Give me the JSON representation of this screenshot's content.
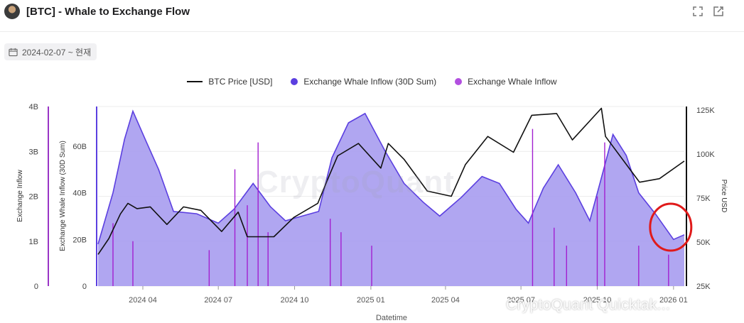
{
  "header": {
    "title": "[BTC] - Whale to Exchange Flow",
    "icons": [
      "expand-icon",
      "open-external-icon"
    ]
  },
  "date_filter": {
    "label": "2024-02-07 ~ 현재",
    "icon": "calendar-icon"
  },
  "watermark": {
    "logo_text": "CryptoQuant",
    "text": "CryptoQuant Quicktak..."
  },
  "colors": {
    "price": "#111111",
    "sum30d_line": "#5b3fe0",
    "sum30d_fill": "#a79cef",
    "daily_inflow": "#a21fd0",
    "axis_left": "#9a35c6",
    "axis_mid": "#5b3fe0",
    "annotation_circle": "#e01a1a"
  },
  "chart_data": {
    "type": "line",
    "xlabel": "Datetime",
    "x_ticks": [
      "2024 04",
      "2024 07",
      "2024 10",
      "2025 01",
      "2025 04",
      "2025 07",
      "2025 10",
      "2026 01"
    ],
    "x_range": [
      "2024-02-07",
      "2026-01-14"
    ],
    "legend": [
      "BTC Price [USD]",
      "Exchange Whale Inflow (30D Sum)",
      "Exchange Whale Inflow"
    ],
    "legend_placement": "top",
    "grid": true,
    "axes": [
      {
        "name": "Exchange Inflow",
        "side": "left-outer",
        "ticks": [
          "0",
          "1B",
          "2B",
          "3B",
          "4B"
        ],
        "range": [
          0,
          4000000000
        ]
      },
      {
        "name": "Exchange Whale Inflow (30D Sum)",
        "side": "left-inner",
        "ticks": [
          "0",
          "20B",
          "40B",
          "60B"
        ],
        "range": [
          0,
          77000000000
        ]
      },
      {
        "name": "Price USD",
        "side": "right",
        "ticks": [
          "25K",
          "50K",
          "75K",
          "100K",
          "125K"
        ],
        "range": [
          25000,
          127000
        ]
      }
    ],
    "series": [
      {
        "name": "BTC Price [USD]",
        "axis": "right",
        "points": [
          [
            "2024-02-07",
            43000
          ],
          [
            "2024-02-20",
            52000
          ],
          [
            "2024-03-05",
            66000
          ],
          [
            "2024-03-14",
            72000
          ],
          [
            "2024-03-25",
            69000
          ],
          [
            "2024-04-10",
            70000
          ],
          [
            "2024-04-30",
            60000
          ],
          [
            "2024-05-20",
            70000
          ],
          [
            "2024-06-10",
            68000
          ],
          [
            "2024-07-05",
            56000
          ],
          [
            "2024-07-25",
            67000
          ],
          [
            "2024-08-05",
            53000
          ],
          [
            "2024-09-06",
            53000
          ],
          [
            "2024-09-30",
            64000
          ],
          [
            "2024-10-29",
            72000
          ],
          [
            "2024-11-12",
            88000
          ],
          [
            "2024-11-22",
            99000
          ],
          [
            "2024-12-17",
            106000
          ],
          [
            "2025-01-13",
            92000
          ],
          [
            "2025-01-22",
            106000
          ],
          [
            "2025-02-10",
            97000
          ],
          [
            "2025-03-10",
            79000
          ],
          [
            "2025-04-08",
            76000
          ],
          [
            "2025-04-25",
            94000
          ],
          [
            "2025-05-22",
            110000
          ],
          [
            "2025-06-22",
            101000
          ],
          [
            "2025-07-14",
            122000
          ],
          [
            "2025-08-13",
            123000
          ],
          [
            "2025-09-01",
            108000
          ],
          [
            "2025-10-06",
            126000
          ],
          [
            "2025-10-11",
            110000
          ],
          [
            "2025-11-21",
            84000
          ],
          [
            "2025-12-15",
            86000
          ],
          [
            "2026-01-14",
            96000
          ]
        ]
      },
      {
        "name": "Exchange Whale Inflow (30D Sum)",
        "axis": "left-inner",
        "points": [
          [
            "2024-02-07",
            18000000000
          ],
          [
            "2024-02-25",
            40000000000
          ],
          [
            "2024-03-10",
            63000000000
          ],
          [
            "2024-03-20",
            75000000000
          ],
          [
            "2024-04-05",
            62000000000
          ],
          [
            "2024-04-20",
            50000000000
          ],
          [
            "2024-05-08",
            32000000000
          ],
          [
            "2024-06-05",
            31000000000
          ],
          [
            "2024-07-01",
            27000000000
          ],
          [
            "2024-07-20",
            33000000000
          ],
          [
            "2024-08-12",
            44000000000
          ],
          [
            "2024-09-02",
            34000000000
          ],
          [
            "2024-09-20",
            28000000000
          ],
          [
            "2024-10-10",
            30000000000
          ],
          [
            "2024-10-30",
            32000000000
          ],
          [
            "2024-11-15",
            55000000000
          ],
          [
            "2024-12-05",
            70000000000
          ],
          [
            "2024-12-25",
            74000000000
          ],
          [
            "2025-01-18",
            58000000000
          ],
          [
            "2025-02-10",
            44000000000
          ],
          [
            "2025-03-05",
            36000000000
          ],
          [
            "2025-03-25",
            30000000000
          ],
          [
            "2025-04-20",
            38000000000
          ],
          [
            "2025-05-15",
            47000000000
          ],
          [
            "2025-06-05",
            44000000000
          ],
          [
            "2025-06-25",
            33000000000
          ],
          [
            "2025-07-10",
            27000000000
          ],
          [
            "2025-07-28",
            42000000000
          ],
          [
            "2025-08-15",
            52000000000
          ],
          [
            "2025-09-05",
            40000000000
          ],
          [
            "2025-09-22",
            28000000000
          ],
          [
            "2025-10-05",
            45000000000
          ],
          [
            "2025-10-20",
            65000000000
          ],
          [
            "2025-11-05",
            56000000000
          ],
          [
            "2025-11-20",
            40000000000
          ],
          [
            "2025-12-10",
            31000000000
          ],
          [
            "2026-01-01",
            20000000000
          ],
          [
            "2026-01-14",
            22000000000
          ]
        ]
      },
      {
        "name": "Exchange Inflow",
        "axis": "left-outer",
        "points": [
          [
            "2024-02-25",
            1400000000
          ],
          [
            "2024-03-20",
            1000000000
          ],
          [
            "2024-06-20",
            800000000
          ],
          [
            "2024-07-21",
            2600000000
          ],
          [
            "2024-08-05",
            1800000000
          ],
          [
            "2024-08-18",
            3200000000
          ],
          [
            "2024-08-30",
            1200000000
          ],
          [
            "2024-11-13",
            1500000000
          ],
          [
            "2024-11-26",
            1200000000
          ],
          [
            "2025-01-02",
            900000000
          ],
          [
            "2025-07-15",
            3500000000
          ],
          [
            "2025-08-10",
            1300000000
          ],
          [
            "2025-08-25",
            900000000
          ],
          [
            "2025-10-01",
            2000000000
          ],
          [
            "2025-10-10",
            3200000000
          ],
          [
            "2025-11-20",
            900000000
          ],
          [
            "2025-12-26",
            700000000
          ]
        ]
      }
    ],
    "annotations": [
      {
        "shape": "circle",
        "date": "2026-01-01",
        "note": ""
      }
    ]
  }
}
